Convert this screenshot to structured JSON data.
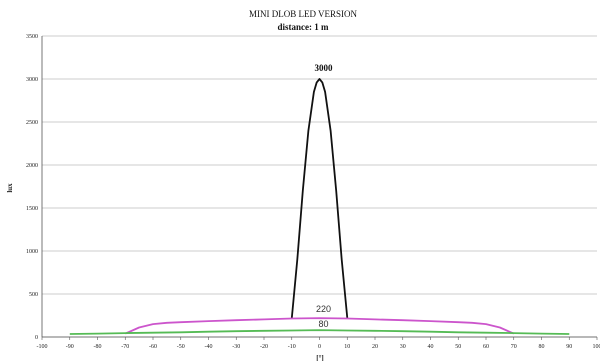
{
  "chart_data": {
    "type": "line",
    "title": "MINI DLOB LED VERSION",
    "subtitle": "distance: 1 m",
    "xlabel": "[°]",
    "ylabel": "lux",
    "xlim": [
      -100,
      100
    ],
    "ylim": [
      0,
      3500
    ],
    "x_ticks": [
      -100,
      -90,
      -80,
      -70,
      -60,
      -50,
      -40,
      -30,
      -20,
      -10,
      0,
      10,
      20,
      30,
      40,
      50,
      60,
      70,
      80,
      90,
      100
    ],
    "y_ticks": [
      0,
      500,
      1000,
      1500,
      2000,
      2500,
      3000,
      3500
    ],
    "grid": true,
    "series": [
      {
        "color": "#111111",
        "x": [
          -10,
          -8,
          -6,
          -4,
          -2,
          -1,
          0,
          1,
          2,
          4,
          6,
          8,
          10
        ],
        "y": [
          220,
          900,
          1700,
          2400,
          2850,
          2960,
          3000,
          2960,
          2850,
          2400,
          1700,
          900,
          220
        ]
      },
      {
        "color": "#cc55cc",
        "x": [
          -70,
          -65,
          -60,
          -55,
          -50,
          -40,
          -30,
          -20,
          -10,
          0,
          10,
          20,
          30,
          40,
          50,
          55,
          60,
          65,
          70
        ],
        "y": [
          40,
          110,
          150,
          165,
          172,
          185,
          195,
          205,
          215,
          220,
          215,
          205,
          195,
          185,
          172,
          165,
          150,
          110,
          40
        ]
      },
      {
        "color": "#55bb55",
        "x": [
          -90,
          -80,
          -70,
          -60,
          -50,
          -40,
          -30,
          -20,
          -10,
          0,
          10,
          20,
          30,
          40,
          50,
          60,
          70,
          80,
          90
        ],
        "y": [
          35,
          40,
          45,
          50,
          55,
          62,
          68,
          72,
          76,
          80,
          76,
          72,
          68,
          62,
          55,
          50,
          45,
          40,
          35
        ]
      }
    ],
    "annotations": [
      {
        "text": "3000",
        "x": 0,
        "y": 3000,
        "style": "bold"
      },
      {
        "text": "220",
        "x": 0,
        "y": 220,
        "style": "normal"
      },
      {
        "text": "80",
        "x": 0,
        "y": 80,
        "style": "normal"
      }
    ]
  }
}
